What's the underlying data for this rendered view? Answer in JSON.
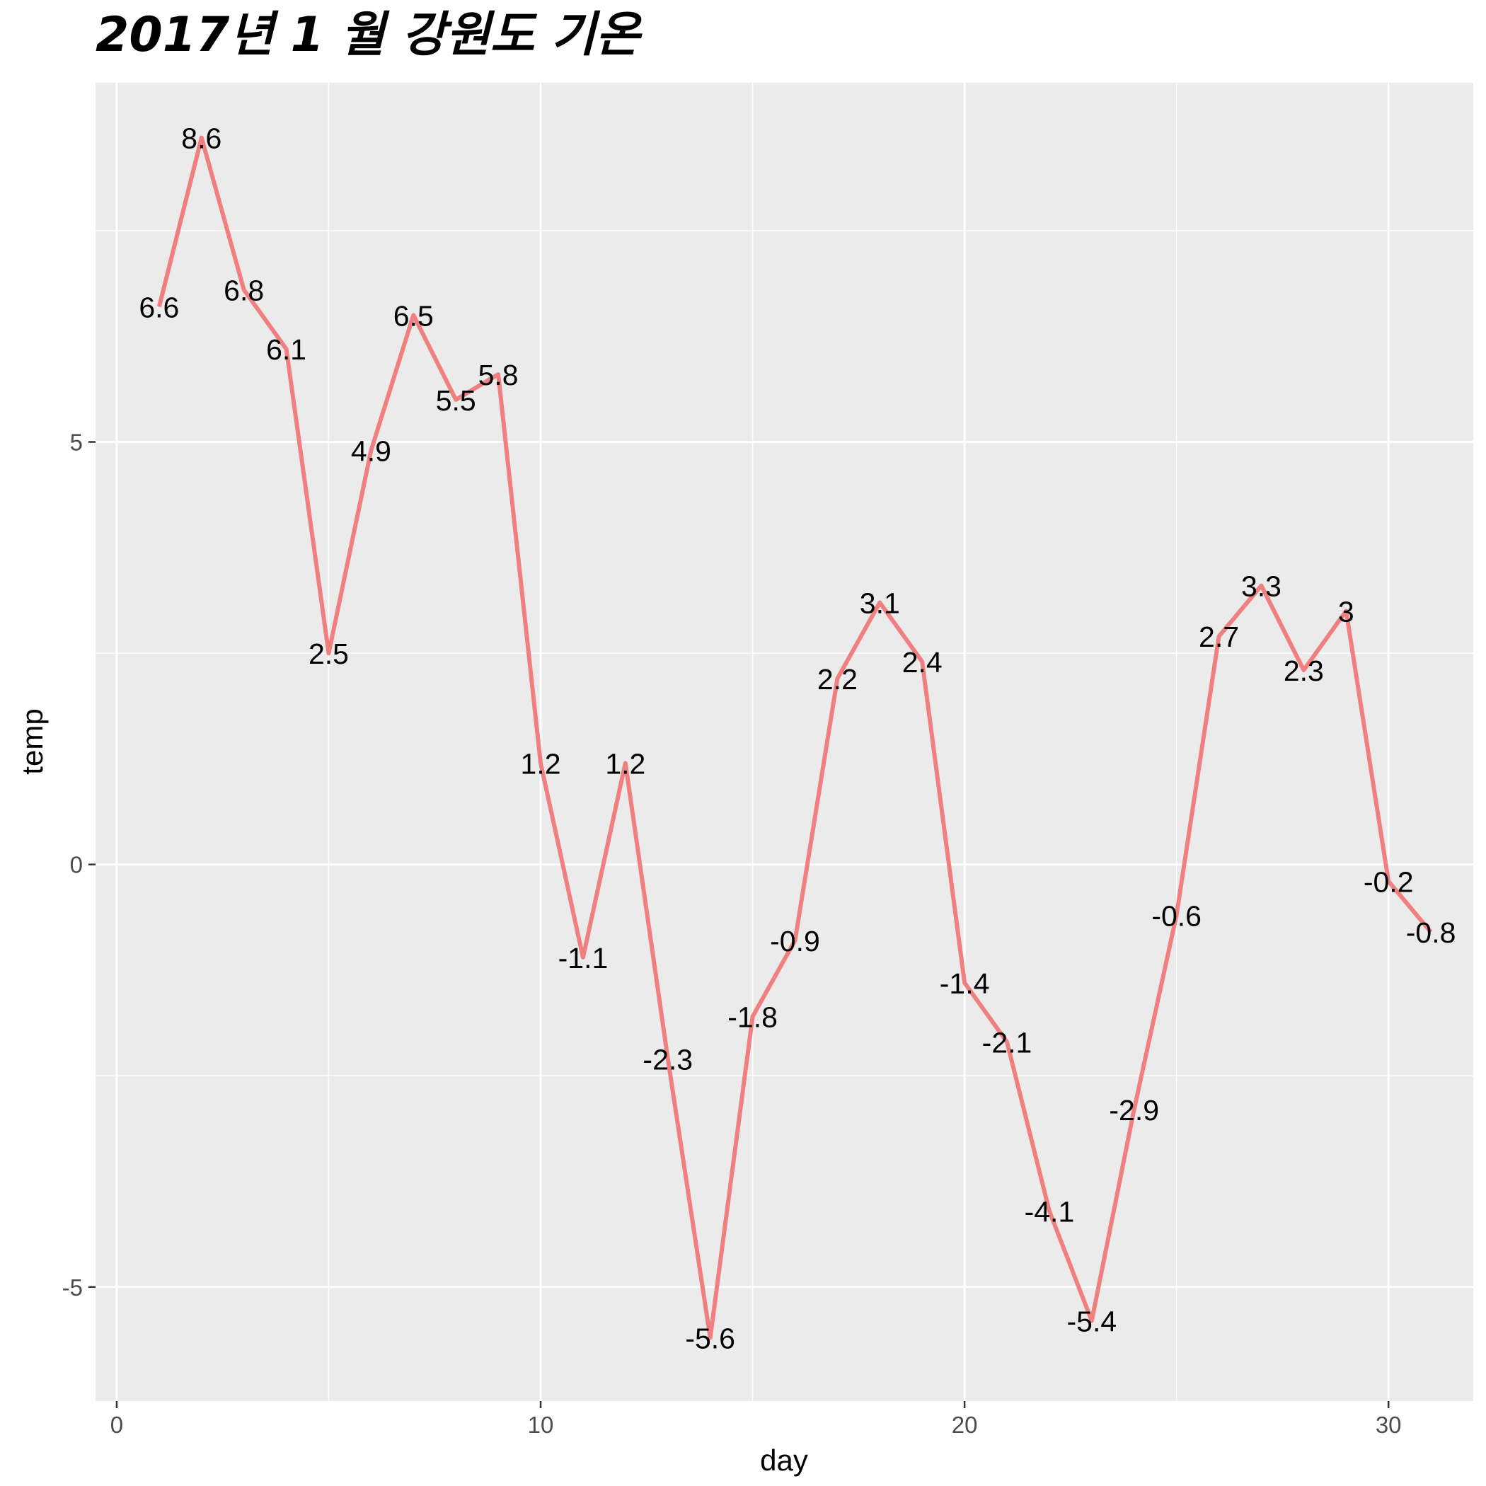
{
  "chart_data": {
    "type": "line",
    "title": "2017년 1 월 강원도 기온",
    "xlabel": "day",
    "ylabel": "temp",
    "xlim": [
      -0.5,
      32
    ],
    "ylim": [
      -6.35,
      9.25
    ],
    "x_ticks": [
      0,
      10,
      20,
      30
    ],
    "x_tick_labels": [
      "0",
      "10",
      "20",
      "30"
    ],
    "x_minor_ticks": [
      5,
      15,
      25
    ],
    "y_ticks": [
      -5,
      0,
      5
    ],
    "y_tick_labels": [
      "-5",
      "0",
      "5"
    ],
    "y_minor_ticks": [
      -2.5,
      2.5,
      7.5
    ],
    "grid": true,
    "legend": "none",
    "colors": {
      "panel_background": "#ebebeb",
      "grid": "#ffffff",
      "line": "#f08080",
      "label_text": "#000000",
      "tick_text": "#4d4d4d"
    },
    "series": [
      {
        "x": [
          1,
          2,
          3,
          4,
          5,
          6,
          7,
          8,
          9,
          10,
          11,
          12,
          13,
          14,
          15,
          16,
          17,
          18,
          19,
          20,
          21,
          22,
          23,
          24,
          25,
          26,
          27,
          28,
          29,
          30,
          31
        ],
        "values": [
          6.6,
          8.6,
          6.8,
          6.1,
          2.5,
          4.9,
          6.5,
          5.5,
          5.8,
          1.2,
          -1.1,
          1.2,
          -2.3,
          -5.6,
          -1.8,
          -0.9,
          2.2,
          3.1,
          2.4,
          -1.4,
          -2.1,
          -4.1,
          -5.4,
          -2.9,
          -0.6,
          2.7,
          3.3,
          2.3,
          3,
          -0.2,
          -0.8
        ],
        "labels": [
          "6.6",
          "8.6",
          "6.8",
          "6.1",
          "2.5",
          "4.9",
          "6.5",
          "5.5",
          "5.8",
          "1.2",
          "-1.1",
          "1.2",
          "-2.3",
          "-5.6",
          "-1.8",
          "-0.9",
          "2.2",
          "3.1",
          "2.4",
          "-1.4",
          "-2.1",
          "-4.1",
          "-5.4",
          "-2.9",
          "-0.6",
          "2.7",
          "3.3",
          "2.3",
          "3",
          "-0.2",
          "-0.8"
        ]
      }
    ]
  }
}
